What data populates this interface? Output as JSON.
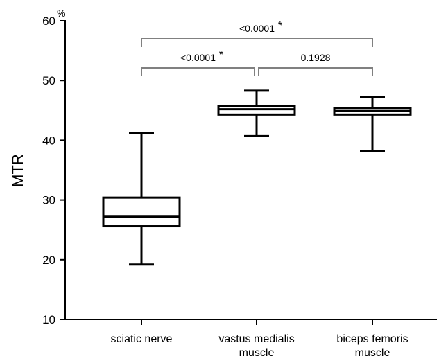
{
  "chart_data": {
    "type": "boxplot",
    "title": "",
    "xlabel": "",
    "ylabel": "MTR",
    "y_unit": "%",
    "ylim": [
      10,
      60
    ],
    "yticks": [
      10,
      20,
      30,
      40,
      50,
      60
    ],
    "grid": false,
    "categories": [
      {
        "lines": [
          "sciatic nerve"
        ]
      },
      {
        "lines": [
          "vastus medialis",
          "muscle"
        ]
      },
      {
        "lines": [
          "biceps femoris",
          "muscle"
        ]
      }
    ],
    "boxes": [
      {
        "min": 19.2,
        "q1": 25.6,
        "median": 27.2,
        "q3": 30.4,
        "max": 41.2
      },
      {
        "min": 40.7,
        "q1": 44.3,
        "median": 45.2,
        "q3": 45.7,
        "max": 48.3
      },
      {
        "min": 38.2,
        "q1": 44.3,
        "median": 44.9,
        "q3": 45.4,
        "max": 47.3
      }
    ],
    "comparisons": [
      {
        "from": 0,
        "to": 1,
        "label": "<0.0001",
        "star": "*",
        "level": 0
      },
      {
        "from": 1,
        "to": 2,
        "label": "0.1928",
        "star": "",
        "level": 0
      },
      {
        "from": 0,
        "to": 2,
        "label": "<0.0001",
        "star": "*",
        "level": 1
      }
    ],
    "colors": {
      "box_stroke": "#000000",
      "bracket_stroke": "#808080"
    }
  }
}
